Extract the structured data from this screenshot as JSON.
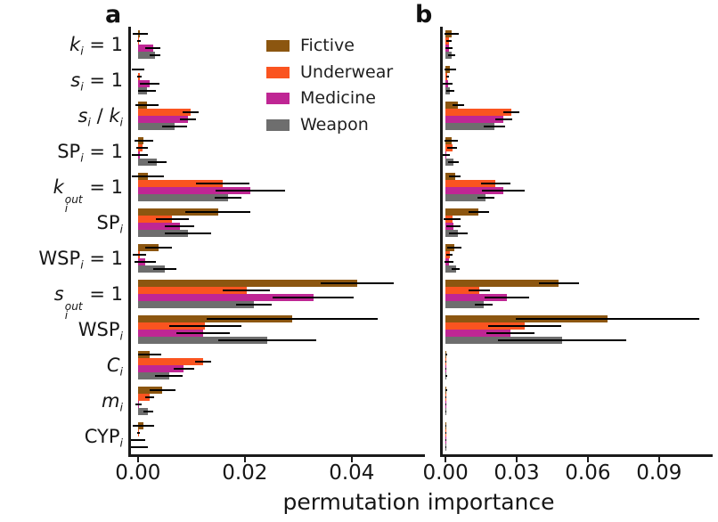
{
  "xlabel": "permutation importance",
  "legend": [
    {
      "label": "Fictive",
      "color": "#8C5610"
    },
    {
      "label": "Underwear",
      "color": "#FA5420"
    },
    {
      "label": "Medicine",
      "color": "#BF2694"
    },
    {
      "label": "Weapon",
      "color": "#6E6E6E"
    }
  ],
  "category_tokens": [
    [
      {
        "t": "k",
        "i": true
      },
      {
        "sub": "i"
      },
      {
        "t": " = 1"
      }
    ],
    [
      {
        "t": "s",
        "i": true
      },
      {
        "sub": "i"
      },
      {
        "t": " = 1"
      }
    ],
    [
      {
        "t": "s",
        "i": true
      },
      {
        "sub": "i"
      },
      {
        "t": " / "
      },
      {
        "t": "k",
        "i": true
      },
      {
        "sub": "i"
      }
    ],
    [
      {
        "t": "SP"
      },
      {
        "sub": "i"
      },
      {
        "t": " = 1"
      }
    ],
    [
      {
        "t": "k",
        "i": true
      },
      {
        "stack": {
          "sup": "out",
          "sub": "i"
        }
      },
      {
        "t": " = 1"
      }
    ],
    [
      {
        "t": "SP"
      },
      {
        "sub": "i"
      }
    ],
    [
      {
        "t": "WSP"
      },
      {
        "sub": "i"
      },
      {
        "t": " = 1"
      }
    ],
    [
      {
        "t": "s",
        "i": true
      },
      {
        "stack": {
          "sup": "out",
          "sub": "i"
        }
      },
      {
        "t": " = 1"
      }
    ],
    [
      {
        "t": "WSP"
      },
      {
        "sub": "i"
      }
    ],
    [
      {
        "t": "C",
        "i": true
      },
      {
        "sub": "i"
      }
    ],
    [
      {
        "t": "m",
        "i": true
      },
      {
        "sub": "i"
      }
    ],
    [
      {
        "t": "CYP"
      },
      {
        "sub": "i"
      }
    ]
  ],
  "chart_data": [
    {
      "type": "bar",
      "orientation": "horizontal",
      "title": "a",
      "xlabel": "permutation importance",
      "categories": [
        "k_i = 1",
        "s_i = 1",
        "s_i / k_i",
        "SP_i = 1",
        "k_i^out = 1",
        "SP_i",
        "WSP_i = 1",
        "s_i^out = 1",
        "WSP_i",
        "C_i",
        "m_i",
        "CYP_i"
      ],
      "xlim": [
        -0.0018,
        0.0537
      ],
      "xticks": [
        0.0,
        0.02,
        0.04
      ],
      "xtick_labels": [
        "0.00",
        "0.02",
        "0.04"
      ],
      "grid": false,
      "legend_position": "upper right inside",
      "series": [
        {
          "name": "Fictive",
          "color": "#8C5610",
          "values": [
            0.0004,
            0.0,
            0.0017,
            0.0011,
            0.0018,
            0.015,
            0.0039,
            0.041,
            0.0289,
            0.0022,
            0.0046,
            0.0011
          ],
          "errors": [
            0.0014,
            0.0012,
            0.0022,
            0.0017,
            0.003,
            0.0061,
            0.0025,
            0.0068,
            0.016,
            0.0022,
            0.0024,
            0.002
          ]
        },
        {
          "name": "Underwear",
          "color": "#FA5420",
          "values": [
            0.0002,
            0.0003,
            0.0098,
            0.0008,
            0.0158,
            0.0064,
            0.0003,
            0.0203,
            0.0126,
            0.0122,
            0.0022,
            0.0001
          ],
          "errors": [
            0.0004,
            0.0004,
            0.0015,
            0.0011,
            0.005,
            0.0031,
            0.0012,
            0.0044,
            0.0067,
            0.0015,
            0.0009,
            0.0003
          ]
        },
        {
          "name": "Medicine",
          "color": "#BF2694",
          "values": [
            0.0028,
            0.0022,
            0.0093,
            0.0004,
            0.0211,
            0.0078,
            0.0014,
            0.0328,
            0.0122,
            0.0086,
            0.0001,
            0.0
          ],
          "errors": [
            0.0014,
            0.0019,
            0.0015,
            0.0015,
            0.0065,
            0.0028,
            0.002,
            0.0076,
            0.005,
            0.0019,
            0.0006,
            0.0014
          ]
        },
        {
          "name": "Weapon",
          "color": "#6E6E6E",
          "values": [
            0.0032,
            0.0017,
            0.0069,
            0.0036,
            0.0169,
            0.0094,
            0.005,
            0.0217,
            0.0242,
            0.0058,
            0.0019,
            0.0
          ],
          "errors": [
            0.001,
            0.0017,
            0.0023,
            0.0018,
            0.0025,
            0.0043,
            0.0022,
            0.0033,
            0.0092,
            0.0026,
            0.0009,
            0.0018
          ]
        }
      ]
    },
    {
      "type": "bar",
      "orientation": "horizontal",
      "title": "b",
      "xlabel": "permutation importance",
      "categories": [
        "k_i = 1",
        "s_i = 1",
        "s_i / k_i",
        "SP_i = 1",
        "k_i^out = 1",
        "SP_i",
        "WSP_i = 1",
        "s_i^out = 1",
        "WSP_i",
        "C_i",
        "m_i",
        "CYP_i"
      ],
      "xlim": [
        -0.0023,
        0.1126
      ],
      "xticks": [
        0.0,
        0.03,
        0.06,
        0.09
      ],
      "xtick_labels": [
        "0.00",
        "0.03",
        "0.06",
        "0.09"
      ],
      "grid": false,
      "series": [
        {
          "name": "Fictive",
          "color": "#8C5610",
          "values": [
            0.0027,
            0.002,
            0.0053,
            0.0024,
            0.004,
            0.014,
            0.0036,
            0.0477,
            0.0683,
            0.0004,
            0.0003,
            0.0002
          ],
          "errors": [
            0.003,
            0.0025,
            0.0025,
            0.0029,
            0.0025,
            0.0043,
            0.003,
            0.0085,
            0.0385,
            0.0004,
            0.0003,
            0.0003
          ]
        },
        {
          "name": "Underwear",
          "color": "#FA5420",
          "values": [
            0.0015,
            0.0008,
            0.0278,
            0.0028,
            0.0211,
            0.0028,
            0.0018,
            0.0143,
            0.0333,
            0.0002,
            0.0002,
            0.0001
          ],
          "errors": [
            0.0012,
            0.0006,
            0.0035,
            0.0021,
            0.0063,
            0.0035,
            0.0013,
            0.0046,
            0.0154,
            0.0002,
            0.0002,
            0.0002
          ]
        },
        {
          "name": "Medicine",
          "color": "#BF2694",
          "values": [
            0.0014,
            0.001,
            0.0245,
            0.0003,
            0.0243,
            0.0033,
            0.0015,
            0.0258,
            0.0274,
            0.0002,
            0.0001,
            0.0001
          ],
          "errors": [
            0.0015,
            0.002,
            0.0035,
            0.0015,
            0.0089,
            0.0029,
            0.0019,
            0.0094,
            0.01,
            0.0002,
            0.0002,
            0.0002
          ]
        },
        {
          "name": "Weapon",
          "color": "#6E6E6E",
          "values": [
            0.0024,
            0.002,
            0.0205,
            0.0033,
            0.017,
            0.0053,
            0.0043,
            0.0161,
            0.049,
            0.0004,
            0.0002,
            0.0002
          ],
          "errors": [
            0.0015,
            0.0016,
            0.0045,
            0.0023,
            0.0035,
            0.004,
            0.0016,
            0.0039,
            0.027,
            0.0004,
            0.0003,
            0.0003
          ]
        }
      ]
    }
  ]
}
